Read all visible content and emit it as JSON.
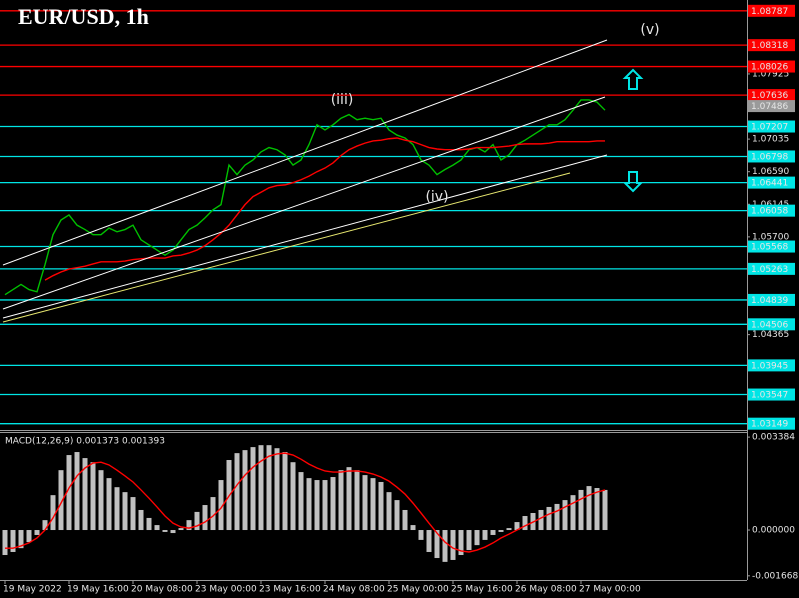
{
  "header": {
    "title": "EUR/USD, 1h"
  },
  "chart_data": [
    {
      "type": "line",
      "x": [
        0,
        2,
        4,
        6,
        8,
        10,
        12,
        14,
        16,
        18,
        20,
        22,
        24,
        26,
        28,
        30,
        32,
        34,
        36,
        38,
        40,
        42,
        44,
        46,
        48,
        50,
        52,
        54,
        56,
        58,
        60,
        62,
        64,
        66,
        68,
        70,
        72,
        74,
        76,
        78,
        80,
        82,
        84,
        86,
        88,
        90,
        92,
        94,
        96,
        98,
        100,
        102,
        104,
        106,
        108,
        110,
        112,
        114,
        116,
        118,
        120,
        122,
        124,
        126,
        128,
        130,
        132,
        134,
        136,
        138,
        140,
        142,
        144,
        146,
        148,
        150
      ],
      "xlim": [
        -0.5,
        185.5
      ],
      "ylim": [
        1.0309,
        1.0888
      ],
      "yticks": [
        1.07925,
        1.07035,
        {
          "value": 1.0659,
          "label": "1.06590"
        },
        1.06145,
        {
          "value": 1.057,
          "label": "1.05700"
        },
        1.04365
      ],
      "series": [
        {
          "color": "#00c000",
          "values": [
            1.0491,
            1.0498,
            1.0505,
            1.0498,
            1.0495,
            1.0532,
            1.0573,
            1.0593,
            1.06,
            1.0586,
            1.058,
            1.0573,
            1.0573,
            1.0582,
            1.0577,
            1.058,
            1.0586,
            1.0566,
            1.0559,
            1.0552,
            1.0545,
            1.0552,
            1.0566,
            1.058,
            1.0586,
            1.0596,
            1.0607,
            1.0614,
            1.0668,
            1.0655,
            1.0668,
            1.0675,
            1.0686,
            1.0692,
            1.0689,
            1.0682,
            1.0668,
            1.0675,
            1.0696,
            1.0723,
            1.0716,
            1.0723,
            1.0732,
            1.0737,
            1.073,
            1.0732,
            1.073,
            1.0732,
            1.0716,
            1.0709,
            1.0705,
            1.0696,
            1.0675,
            1.0668,
            1.0655,
            1.0662,
            1.0668,
            1.0675,
            1.0689,
            1.0692,
            1.0686,
            1.0696,
            1.0675,
            1.0682,
            1.0696,
            1.0702,
            1.0709,
            1.0716,
            1.0723,
            1.0723,
            1.073,
            1.0743,
            1.0757,
            1.0757,
            1.0754,
            1.0743
          ]
        },
        {
          "color": "#ff0000",
          "values": [
            null,
            null,
            null,
            null,
            null,
            1.0511,
            1.0517,
            1.0522,
            1.0526,
            1.0528,
            1.053,
            1.0533,
            1.0536,
            1.0536,
            1.0536,
            1.0537,
            1.0539,
            1.054,
            1.0541,
            1.0541,
            1.0541,
            1.0544,
            1.0545,
            1.0548,
            1.0552,
            1.0558,
            1.0566,
            1.0575,
            1.0586,
            1.06,
            1.0614,
            1.0625,
            1.0631,
            1.0637,
            1.064,
            1.0641,
            1.0644,
            1.0648,
            1.0653,
            1.0659,
            1.0664,
            1.0671,
            1.0681,
            1.0689,
            1.0694,
            1.0698,
            1.0701,
            1.0702,
            1.0704,
            1.0705,
            1.0702,
            1.07,
            1.0696,
            1.0692,
            1.069,
            1.0689,
            1.0689,
            1.0689,
            1.069,
            1.0692,
            1.0692,
            1.0692,
            1.0693,
            1.0694,
            1.0696,
            1.0697,
            1.0697,
            1.0697,
            1.0698,
            1.07,
            1.07,
            1.07,
            1.07,
            1.07,
            1.0701,
            1.0701
          ]
        }
      ],
      "levels": [
        {
          "value": 1.08787,
          "color": "#ff0000",
          "text_color": "#ffffff"
        },
        {
          "value": 1.08318,
          "color": "#ff0000",
          "text_color": "#ffffff"
        },
        {
          "value": 1.08026,
          "color": "#ff0000",
          "text_color": "#ffffff"
        },
        {
          "value": 1.07636,
          "color": "#ff0000",
          "text_color": "#ffffff"
        },
        {
          "value": 1.07207,
          "color": "#00e5e5",
          "text_color": "#000000"
        },
        {
          "value": 1.06798,
          "color": "#00e5e5",
          "text_color": "#000000"
        },
        {
          "value": 1.06441,
          "color": "#00e5e5",
          "text_color": "#000000"
        },
        {
          "value": 1.06058,
          "color": "#00e5e5",
          "text_color": "#000000"
        },
        {
          "value": 1.05568,
          "color": "#00e5e5",
          "text_color": "#000000"
        },
        {
          "value": 1.05263,
          "color": "#00e5e5",
          "text_color": "#000000"
        },
        {
          "value": 1.04839,
          "color": "#00e5e5",
          "text_color": "#000000"
        },
        {
          "value": 1.04506,
          "color": "#00e5e5",
          "text_color": "#000000"
        },
        {
          "value": 1.03945,
          "color": "#00e5e5",
          "text_color": "#000000"
        },
        {
          "value": 1.03547,
          "color": "#00e5e5",
          "text_color": "#000000"
        },
        {
          "value": 1.03149,
          "color": "#00e5e5",
          "text_color": "#000000"
        }
      ],
      "current_price": 1.07486,
      "annotations": [
        "(iii)",
        "(iv)",
        "(v)"
      ]
    },
    {
      "type": "bar",
      "label": "MACD(12,26,9) 0.001373 0.001393",
      "x": [
        0,
        2,
        4,
        6,
        8,
        10,
        12,
        14,
        16,
        18,
        20,
        22,
        24,
        26,
        28,
        30,
        32,
        34,
        36,
        38,
        40,
        42,
        44,
        46,
        48,
        50,
        52,
        54,
        56,
        58,
        60,
        62,
        64,
        66,
        68,
        70,
        72,
        74,
        76,
        78,
        80,
        82,
        84,
        86,
        88,
        90,
        92,
        94,
        96,
        98,
        100,
        102,
        104,
        106,
        108,
        110,
        112,
        114,
        116,
        118,
        120,
        122,
        124,
        126,
        128,
        130,
        132,
        134,
        136,
        138,
        140,
        142,
        144,
        146,
        148,
        150
      ],
      "xlim": [
        -0.5,
        185.5
      ],
      "xticks": [
        {
          "value": 0,
          "label": "19 May 2022"
        },
        {
          "value": 16,
          "label": "19 May 16:00"
        },
        {
          "value": 32,
          "label": "20 May 08:00"
        },
        {
          "value": 48,
          "label": "23 May 00:00"
        },
        {
          "value": 64,
          "label": "23 May 16:00"
        },
        {
          "value": 80,
          "label": "24 May 08:00"
        },
        {
          "value": 96,
          "label": "25 May 00:00"
        },
        {
          "value": 112,
          "label": "25 May 16:00"
        },
        {
          "value": 128,
          "label": "26 May 08:00"
        },
        {
          "value": 144,
          "label": "27 May 00:00"
        }
      ],
      "ylim": [
        -0.00182,
        0.00357
      ],
      "yticks": [
        0.003384,
        {
          "value": 0,
          "label": "0.000000"
        },
        -0.001668
      ],
      "series": [
        {
          "color": "#c0c0c0",
          "values": [
            -0.00091,
            -0.0008,
            -0.00066,
            -0.00044,
            -0.00018,
            0.00036,
            0.00127,
            0.00218,
            0.00273,
            0.00284,
            0.00262,
            0.00247,
            0.00218,
            0.00189,
            0.00156,
            0.00138,
            0.0012,
            0.00073,
            0.00044,
            0.00018,
            -7e-05,
            -0.00011,
            7e-05,
            0.00036,
            0.00066,
            0.00091,
            0.0012,
            0.00182,
            0.00255,
            0.0028,
            0.00291,
            0.00302,
            0.00309,
            0.00309,
            0.00298,
            0.00284,
            0.00247,
            0.00211,
            0.00189,
            0.00182,
            0.00182,
            0.00193,
            0.00218,
            0.00229,
            0.00218,
            0.002,
            0.00189,
            0.00175,
            0.00138,
            0.00109,
            0.00073,
            0.00018,
            -0.00036,
            -0.0008,
            -0.00102,
            -0.00116,
            -0.00109,
            -0.00091,
            -0.00073,
            -0.00055,
            -0.00036,
            -0.00018,
            -7e-05,
            7e-05,
            0.00029,
            0.00051,
            0.00062,
            0.00073,
            0.00084,
            0.00095,
            0.00109,
            0.00127,
            0.00146,
            0.0016,
            0.00153,
            0.00146
          ]
        },
        {
          "color": "#ff0000",
          "type": "line",
          "values": [
            -0.00066,
            -0.00066,
            -0.00058,
            -0.00047,
            -0.00029,
            0,
            0.00044,
            0.00098,
            0.00153,
            0.00197,
            0.00226,
            0.00244,
            0.00247,
            0.00237,
            0.00218,
            0.00197,
            0.00175,
            0.00146,
            0.00116,
            0.00084,
            0.00051,
            0.00025,
            0.00011,
            7e-05,
            0.00015,
            0.00029,
            0.00051,
            0.0008,
            0.00124,
            0.00164,
            0.002,
            0.00229,
            0.00251,
            0.00269,
            0.00277,
            0.0028,
            0.00273,
            0.00258,
            0.0024,
            0.00226,
            0.00215,
            0.00211,
            0.00211,
            0.00215,
            0.00215,
            0.00211,
            0.00204,
            0.00193,
            0.00178,
            0.00156,
            0.00131,
            0.00098,
            0.00062,
            0.00025,
            -0.00011,
            -0.00044,
            -0.00066,
            -0.00076,
            -0.0008,
            -0.00073,
            -0.00062,
            -0.00047,
            -0.00029,
            -0.00015,
            0,
            0.00015,
            0.00029,
            0.00044,
            0.00058,
            0.00069,
            0.00084,
            0.00098,
            0.00113,
            0.00127,
            0.00138,
            0.00146
          ]
        }
      ]
    }
  ]
}
